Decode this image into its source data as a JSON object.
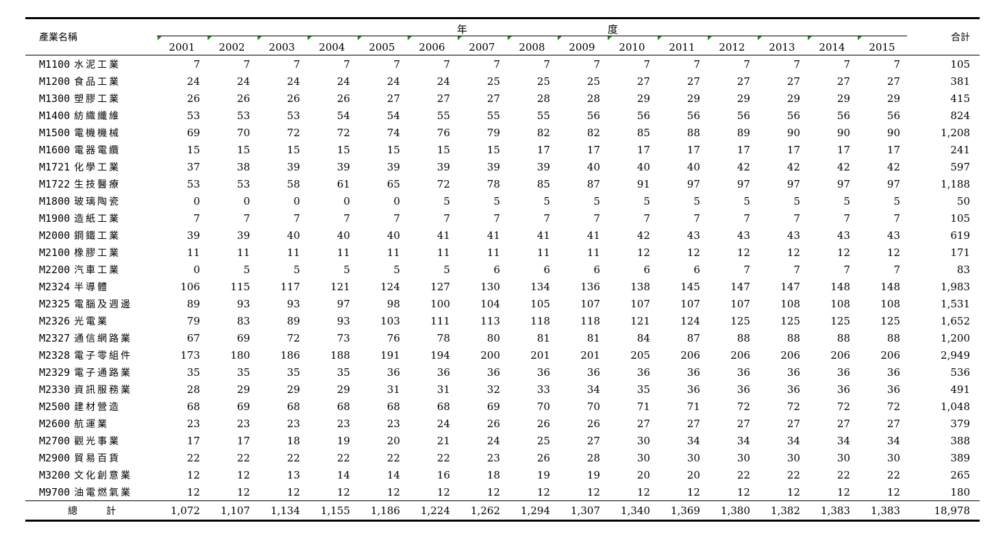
{
  "header": {
    "industry_label": "產業名稱",
    "year_group_left": "年",
    "year_group_right": "度",
    "total_label": "合計",
    "years": [
      "2001",
      "2002",
      "2003",
      "2004",
      "2005",
      "2006",
      "2007",
      "2008",
      "2009",
      "2010",
      "2011",
      "2012",
      "2013",
      "2014",
      "2015"
    ]
  },
  "rows": [
    {
      "code": "M1100",
      "name": "水泥工業",
      "values": [
        "7",
        "7",
        "7",
        "7",
        "7",
        "7",
        "7",
        "7",
        "7",
        "7",
        "7",
        "7",
        "7",
        "7",
        "7"
      ],
      "total": "105"
    },
    {
      "code": "M1200",
      "name": "食品工業",
      "values": [
        "24",
        "24",
        "24",
        "24",
        "24",
        "24",
        "25",
        "25",
        "25",
        "27",
        "27",
        "27",
        "27",
        "27",
        "27"
      ],
      "total": "381"
    },
    {
      "code": "M1300",
      "name": "塑膠工業",
      "values": [
        "26",
        "26",
        "26",
        "26",
        "27",
        "27",
        "27",
        "28",
        "28",
        "29",
        "29",
        "29",
        "29",
        "29",
        "29"
      ],
      "total": "415"
    },
    {
      "code": "M1400",
      "name": "紡織纖維",
      "values": [
        "53",
        "53",
        "53",
        "54",
        "54",
        "55",
        "55",
        "55",
        "56",
        "56",
        "56",
        "56",
        "56",
        "56",
        "56"
      ],
      "total": "824"
    },
    {
      "code": "M1500",
      "name": "電機機械",
      "values": [
        "69",
        "70",
        "72",
        "72",
        "74",
        "76",
        "79",
        "82",
        "82",
        "85",
        "88",
        "89",
        "90",
        "90",
        "90"
      ],
      "total": "1,208"
    },
    {
      "code": "M1600",
      "name": "電器電纜",
      "values": [
        "15",
        "15",
        "15",
        "15",
        "15",
        "15",
        "15",
        "17",
        "17",
        "17",
        "17",
        "17",
        "17",
        "17",
        "17"
      ],
      "total": "241"
    },
    {
      "code": "M1721",
      "name": "化學工業",
      "values": [
        "37",
        "38",
        "39",
        "39",
        "39",
        "39",
        "39",
        "39",
        "40",
        "40",
        "40",
        "42",
        "42",
        "42",
        "42"
      ],
      "total": "597"
    },
    {
      "code": "M1722",
      "name": "生技醫療",
      "values": [
        "53",
        "53",
        "58",
        "61",
        "65",
        "72",
        "78",
        "85",
        "87",
        "91",
        "97",
        "97",
        "97",
        "97",
        "97"
      ],
      "total": "1,188"
    },
    {
      "code": "M1800",
      "name": "玻璃陶瓷",
      "values": [
        "0",
        "0",
        "0",
        "0",
        "0",
        "5",
        "5",
        "5",
        "5",
        "5",
        "5",
        "5",
        "5",
        "5",
        "5"
      ],
      "total": "50"
    },
    {
      "code": "M1900",
      "name": "造紙工業",
      "values": [
        "7",
        "7",
        "7",
        "7",
        "7",
        "7",
        "7",
        "7",
        "7",
        "7",
        "7",
        "7",
        "7",
        "7",
        "7"
      ],
      "total": "105"
    },
    {
      "code": "M2000",
      "name": "鋼鐵工業",
      "values": [
        "39",
        "39",
        "40",
        "40",
        "40",
        "41",
        "41",
        "41",
        "41",
        "42",
        "43",
        "43",
        "43",
        "43",
        "43"
      ],
      "total": "619"
    },
    {
      "code": "M2100",
      "name": "橡膠工業",
      "values": [
        "11",
        "11",
        "11",
        "11",
        "11",
        "11",
        "11",
        "11",
        "11",
        "12",
        "12",
        "12",
        "12",
        "12",
        "12"
      ],
      "total": "171"
    },
    {
      "code": "M2200",
      "name": "汽車工業",
      "values": [
        "0",
        "5",
        "5",
        "5",
        "5",
        "5",
        "6",
        "6",
        "6",
        "6",
        "6",
        "7",
        "7",
        "7",
        "7"
      ],
      "total": "83"
    },
    {
      "code": "M2324",
      "name": "半導體",
      "values": [
        "106",
        "115",
        "117",
        "121",
        "124",
        "127",
        "130",
        "134",
        "136",
        "138",
        "145",
        "147",
        "147",
        "148",
        "148"
      ],
      "total": "1,983"
    },
    {
      "code": "M2325",
      "name": "電腦及週邊",
      "values": [
        "89",
        "93",
        "93",
        "97",
        "98",
        "100",
        "104",
        "105",
        "107",
        "107",
        "107",
        "107",
        "108",
        "108",
        "108"
      ],
      "total": "1,531"
    },
    {
      "code": "M2326",
      "name": "光電業",
      "values": [
        "79",
        "83",
        "89",
        "93",
        "103",
        "111",
        "113",
        "118",
        "118",
        "121",
        "124",
        "125",
        "125",
        "125",
        "125"
      ],
      "total": "1,652"
    },
    {
      "code": "M2327",
      "name": "通信網路業",
      "values": [
        "67",
        "69",
        "72",
        "73",
        "76",
        "78",
        "80",
        "81",
        "81",
        "84",
        "87",
        "88",
        "88",
        "88",
        "88"
      ],
      "total": "1,200"
    },
    {
      "code": "M2328",
      "name": "電子零組件",
      "values": [
        "173",
        "180",
        "186",
        "188",
        "191",
        "194",
        "200",
        "201",
        "201",
        "205",
        "206",
        "206",
        "206",
        "206",
        "206"
      ],
      "total": "2,949"
    },
    {
      "code": "M2329",
      "name": "電子通路業",
      "values": [
        "35",
        "35",
        "35",
        "35",
        "36",
        "36",
        "36",
        "36",
        "36",
        "36",
        "36",
        "36",
        "36",
        "36",
        "36"
      ],
      "total": "536"
    },
    {
      "code": "M2330",
      "name": "資訊服務業",
      "values": [
        "28",
        "29",
        "29",
        "29",
        "31",
        "31",
        "32",
        "33",
        "34",
        "35",
        "36",
        "36",
        "36",
        "36",
        "36"
      ],
      "total": "491"
    },
    {
      "code": "M2500",
      "name": "建材營造",
      "values": [
        "68",
        "69",
        "68",
        "68",
        "68",
        "68",
        "69",
        "70",
        "70",
        "71",
        "71",
        "72",
        "72",
        "72",
        "72"
      ],
      "total": "1,048"
    },
    {
      "code": "M2600",
      "name": "航運業",
      "values": [
        "23",
        "23",
        "23",
        "23",
        "23",
        "24",
        "26",
        "26",
        "26",
        "27",
        "27",
        "27",
        "27",
        "27",
        "27"
      ],
      "total": "379"
    },
    {
      "code": "M2700",
      "name": "觀光事業",
      "values": [
        "17",
        "17",
        "18",
        "19",
        "20",
        "21",
        "24",
        "25",
        "27",
        "30",
        "34",
        "34",
        "34",
        "34",
        "34"
      ],
      "total": "388"
    },
    {
      "code": "M2900",
      "name": "貿易百貨",
      "values": [
        "22",
        "22",
        "22",
        "22",
        "22",
        "22",
        "23",
        "26",
        "28",
        "30",
        "30",
        "30",
        "30",
        "30",
        "30"
      ],
      "total": "389"
    },
    {
      "code": "M3200",
      "name": "文化創意業",
      "values": [
        "12",
        "12",
        "13",
        "14",
        "14",
        "16",
        "18",
        "19",
        "19",
        "20",
        "20",
        "22",
        "22",
        "22",
        "22"
      ],
      "total": "265"
    },
    {
      "code": "M9700",
      "name": "油電燃氣業",
      "values": [
        "12",
        "12",
        "12",
        "12",
        "12",
        "12",
        "12",
        "12",
        "12",
        "12",
        "12",
        "12",
        "12",
        "12",
        "12"
      ],
      "total": "180"
    }
  ],
  "summary": {
    "label": "總計",
    "values": [
      "1,072",
      "1,107",
      "1,134",
      "1,155",
      "1,186",
      "1,224",
      "1,262",
      "1,294",
      "1,307",
      "1,340",
      "1,369",
      "1,380",
      "1,382",
      "1,383",
      "1,383"
    ],
    "total": "18,978"
  }
}
